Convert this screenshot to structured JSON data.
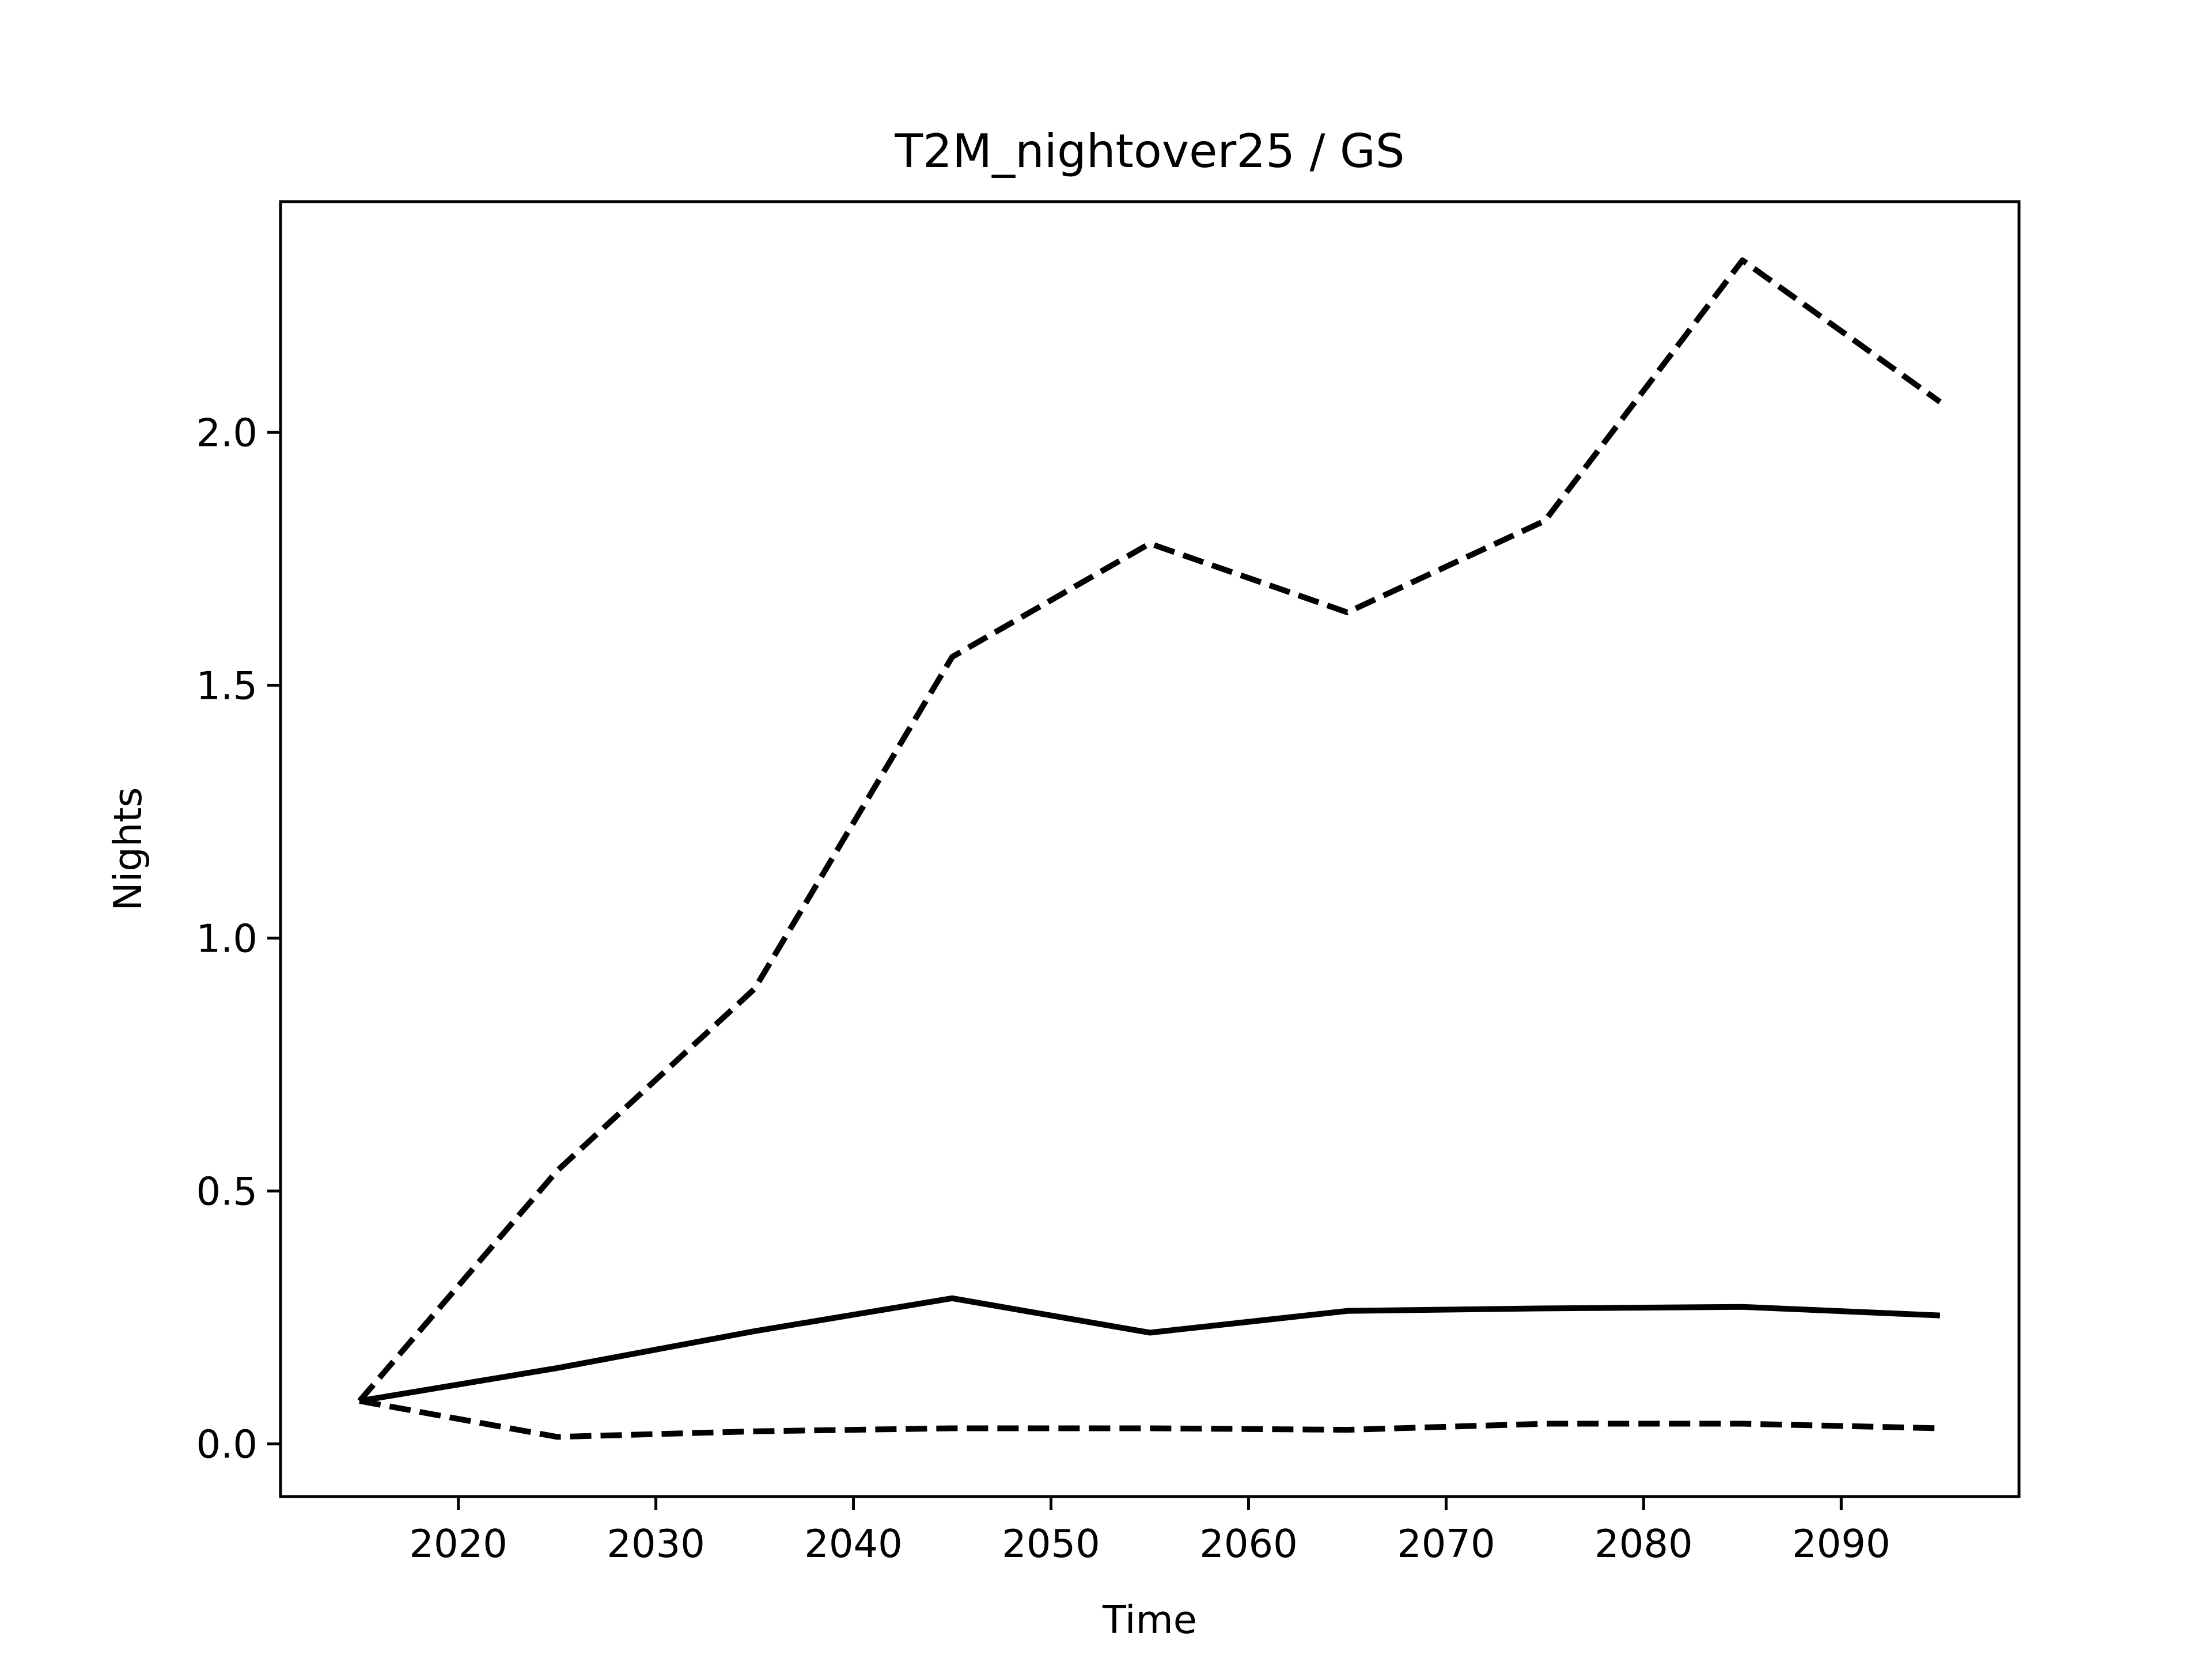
{
  "chart_data": {
    "type": "line",
    "title": "T2M_nightover25 / GS",
    "xlabel": "Time",
    "ylabel": "Nights",
    "x": [
      2015,
      2025,
      2035,
      2045,
      2055,
      2065,
      2075,
      2085,
      2095
    ],
    "series": [
      {
        "color": "#000000",
        "dashed": true,
        "values": [
          0.085,
          0.54,
          0.9,
          1.556,
          1.78,
          1.644,
          1.825,
          2.34,
          2.06
        ]
      },
      {
        "color": "#000000",
        "dashed": false,
        "values": [
          0.085,
          0.15,
          0.223,
          0.288,
          0.22,
          0.263,
          0.268,
          0.271,
          0.254
        ]
      },
      {
        "color": "#000000",
        "dashed": true,
        "values": [
          0.085,
          0.014,
          0.025,
          0.031,
          0.031,
          0.028,
          0.04,
          0.04,
          0.031
        ]
      }
    ],
    "xlim": [
      2011,
      2099
    ],
    "ylim": [
      -0.104,
      2.456
    ],
    "xticks": [
      2020,
      2030,
      2040,
      2050,
      2060,
      2070,
      2080,
      2090
    ],
    "yticks": [
      {
        "value": 0,
        "label": "0.0"
      },
      0.5,
      {
        "value": 1,
        "label": "1.0"
      },
      1.5,
      {
        "value": 2,
        "label": "2.0"
      }
    ],
    "grid": false
  }
}
